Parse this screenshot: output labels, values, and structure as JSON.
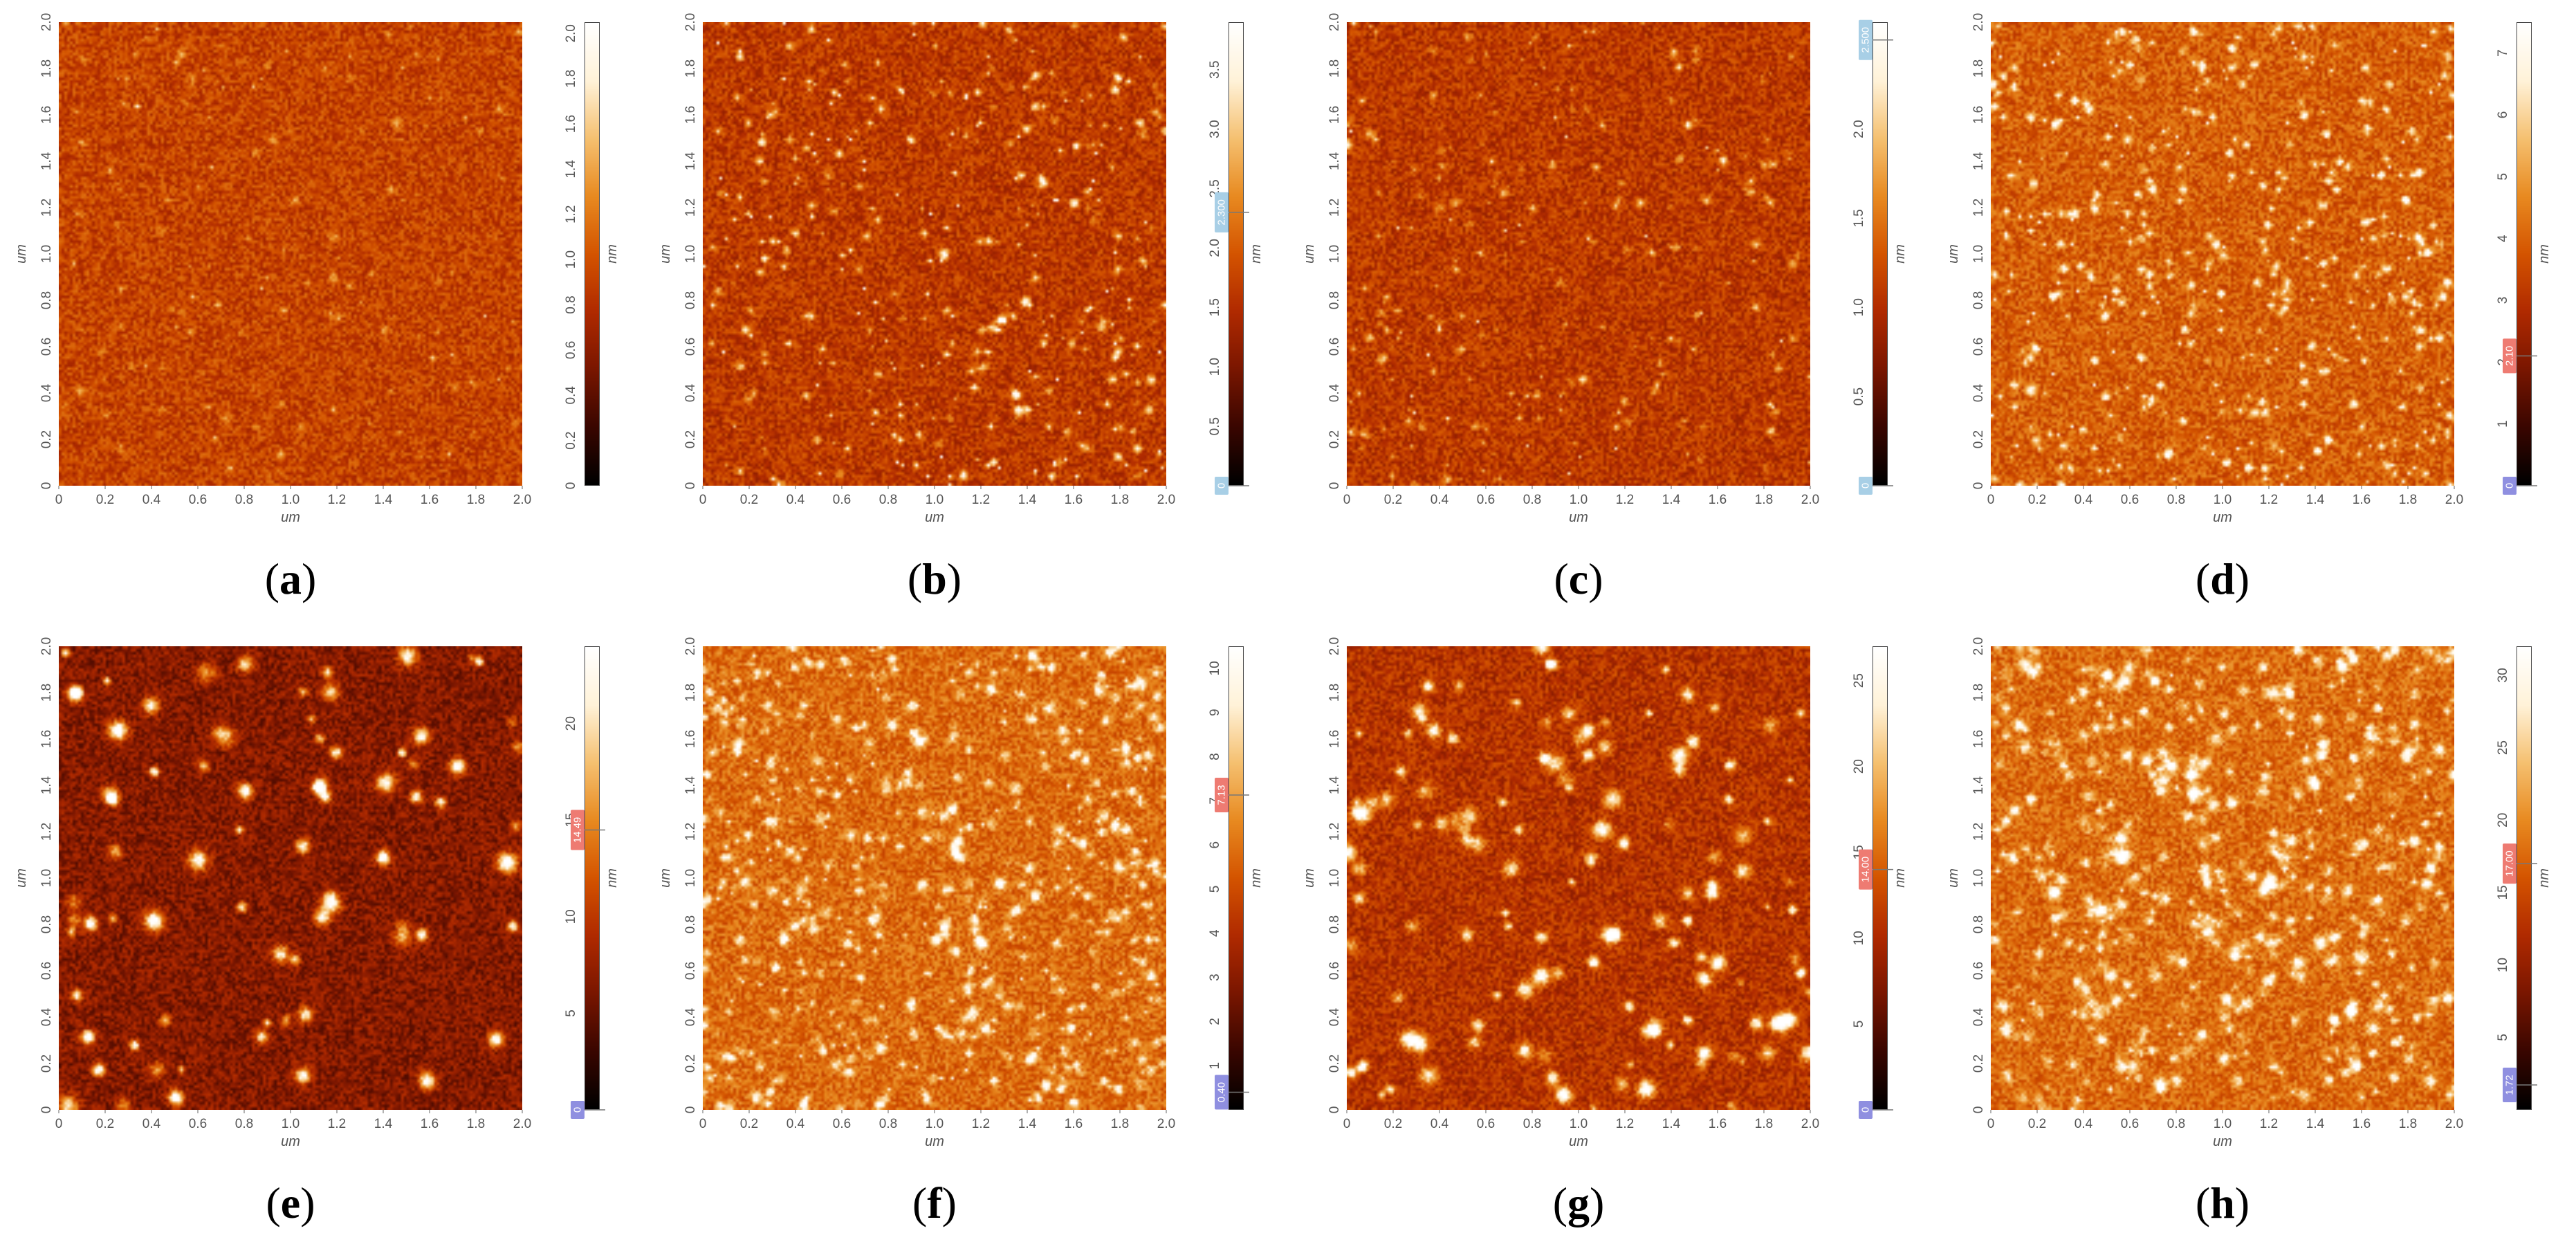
{
  "colors": {
    "colormap": [
      "#000000",
      "#3a0600",
      "#7a1600",
      "#b02a00",
      "#d45400",
      "#e88a20",
      "#f5c070",
      "#fff2d8",
      "#ffffff"
    ],
    "marker_blue": "#a8cfe6",
    "marker_red": "#ee7b72",
    "marker_purple": "#8f8fe0"
  },
  "panels": [
    {
      "id": "a",
      "caption_open": "(",
      "caption_letter": "a",
      "caption_close": ")",
      "x_axis_label": "um",
      "y_axis_label": "um",
      "colorbar_unit": "nm",
      "x_ticks": [
        "0",
        "0.2",
        "0.4",
        "0.6",
        "0.8",
        "1.0",
        "1.2",
        "1.4",
        "1.6",
        "1.8",
        "2.0"
      ],
      "y_ticks": [
        "0",
        "0.2",
        "0.4",
        "0.6",
        "0.8",
        "1.0",
        "1.2",
        "1.4",
        "1.6",
        "1.8",
        "2.0"
      ],
      "colorbar_ticks": [
        "0",
        "0.2",
        "0.4",
        "0.6",
        "0.8",
        "1.0",
        "1.2",
        "1.4",
        "1.6",
        "1.8",
        "2.0"
      ],
      "colorbar_max": 2.05,
      "texture": {
        "base": 0.45,
        "spot_density": 0.05,
        "spot_strength": 0.25,
        "spot_radius": 3
      },
      "markers": []
    },
    {
      "id": "b",
      "caption_open": "(",
      "caption_letter": "b",
      "caption_close": ")",
      "x_axis_label": "um",
      "y_axis_label": "um",
      "colorbar_unit": "nm",
      "x_ticks": [
        "0",
        "0.2",
        "0.4",
        "0.6",
        "0.8",
        "1.0",
        "1.2",
        "1.4",
        "1.6",
        "1.8",
        "2.0"
      ],
      "y_ticks": [
        "0",
        "0.2",
        "0.4",
        "0.6",
        "0.8",
        "1.0",
        "1.2",
        "1.4",
        "1.6",
        "1.8",
        "2.0"
      ],
      "colorbar_ticks": [
        "0.5",
        "1.0",
        "1.5",
        "2.0",
        "2.5",
        "3.0",
        "3.5"
      ],
      "colorbar_max": 3.9,
      "texture": {
        "base": 0.42,
        "spot_density": 0.12,
        "spot_strength": 0.5,
        "spot_radius": 3
      },
      "markers": [
        {
          "value": 2.3,
          "label": "2.300",
          "color": "blue"
        },
        {
          "value": 0,
          "label": "0",
          "color": "blue"
        }
      ]
    },
    {
      "id": "c",
      "caption_open": "(",
      "caption_letter": "c",
      "caption_close": ")",
      "x_axis_label": "um",
      "y_axis_label": "um",
      "colorbar_unit": "nm",
      "x_ticks": [
        "0",
        "0.2",
        "0.4",
        "0.6",
        "0.8",
        "1.0",
        "1.2",
        "1.4",
        "1.6",
        "1.8",
        "2.0"
      ],
      "y_ticks": [
        "0",
        "0.2",
        "0.4",
        "0.6",
        "0.8",
        "1.0",
        "1.2",
        "1.4",
        "1.6",
        "1.8",
        "2.0"
      ],
      "colorbar_ticks": [
        "0.5",
        "1.0",
        "1.5",
        "2.0"
      ],
      "colorbar_max": 2.6,
      "texture": {
        "base": 0.42,
        "spot_density": 0.08,
        "spot_strength": 0.35,
        "spot_radius": 3
      },
      "markers": [
        {
          "value": 2.5,
          "label": "2.500",
          "color": "blue"
        },
        {
          "value": 0,
          "label": "0",
          "color": "blue"
        }
      ]
    },
    {
      "id": "d",
      "caption_open": "(",
      "caption_letter": "d",
      "caption_close": ")",
      "x_axis_label": "um",
      "y_axis_label": "um",
      "colorbar_unit": "nm",
      "x_ticks": [
        "0",
        "0.2",
        "0.4",
        "0.6",
        "0.8",
        "1.0",
        "1.2",
        "1.4",
        "1.6",
        "1.8",
        "2.0"
      ],
      "y_ticks": [
        "0",
        "0.2",
        "0.4",
        "0.6",
        "0.8",
        "1.0",
        "1.2",
        "1.4",
        "1.6",
        "1.8",
        "2.0"
      ],
      "colorbar_ticks": [
        "1",
        "2",
        "3",
        "4",
        "5",
        "6",
        "7"
      ],
      "colorbar_max": 7.5,
      "texture": {
        "base": 0.52,
        "spot_density": 0.25,
        "spot_strength": 0.55,
        "spot_radius": 4
      },
      "markers": [
        {
          "value": 2.1,
          "label": "2.10",
          "color": "red"
        },
        {
          "value": 0,
          "label": "0",
          "color": "purple"
        }
      ]
    },
    {
      "id": "e",
      "caption_open": "(",
      "caption_letter": "e",
      "caption_close": ")",
      "x_axis_label": "um",
      "y_axis_label": "um",
      "colorbar_unit": "nm",
      "x_ticks": [
        "0",
        "0.2",
        "0.4",
        "0.6",
        "0.8",
        "1.0",
        "1.2",
        "1.4",
        "1.6",
        "1.8",
        "2.0"
      ],
      "y_ticks": [
        "0",
        "0.2",
        "0.4",
        "0.6",
        "0.8",
        "1.0",
        "1.2",
        "1.4",
        "1.6",
        "1.8",
        "2.0"
      ],
      "colorbar_ticks": [
        "5",
        "10",
        "15",
        "20"
      ],
      "colorbar_max": 24,
      "texture": {
        "base": 0.28,
        "spot_density": 0.22,
        "spot_strength": 0.75,
        "spot_radius": 9
      },
      "markers": [
        {
          "value": 14.49,
          "label": "14.49",
          "color": "red"
        },
        {
          "value": 0,
          "label": "0",
          "color": "purple"
        }
      ]
    },
    {
      "id": "f",
      "caption_open": "(",
      "caption_letter": "f",
      "caption_close": ")",
      "x_axis_label": "um",
      "y_axis_label": "um",
      "colorbar_unit": "nm",
      "x_ticks": [
        "0",
        "0.2",
        "0.4",
        "0.6",
        "0.8",
        "1.0",
        "1.2",
        "1.4",
        "1.6",
        "1.8",
        "2.0"
      ],
      "y_ticks": [
        "0",
        "0.2",
        "0.4",
        "0.6",
        "0.8",
        "1.0",
        "1.2",
        "1.4",
        "1.6",
        "1.8",
        "2.0"
      ],
      "colorbar_ticks": [
        "1",
        "2",
        "3",
        "4",
        "5",
        "6",
        "7",
        "8",
        "9",
        "10"
      ],
      "colorbar_max": 10.5,
      "texture": {
        "base": 0.55,
        "spot_density": 0.5,
        "spot_strength": 0.45,
        "spot_radius": 5
      },
      "markers": [
        {
          "value": 7.13,
          "label": "7.13",
          "color": "red"
        },
        {
          "value": 0.4,
          "label": "0.40",
          "color": "purple"
        }
      ]
    },
    {
      "id": "g",
      "caption_open": "(",
      "caption_letter": "g",
      "caption_close": ")",
      "x_axis_label": "um",
      "y_axis_label": "um",
      "colorbar_unit": "nm",
      "x_ticks": [
        "0",
        "0.2",
        "0.4",
        "0.6",
        "0.8",
        "1.0",
        "1.2",
        "1.4",
        "1.6",
        "1.8",
        "2.0"
      ],
      "y_ticks": [
        "0",
        "0.2",
        "0.4",
        "0.6",
        "0.8",
        "1.0",
        "1.2",
        "1.4",
        "1.6",
        "1.8",
        "2.0"
      ],
      "colorbar_ticks": [
        "5",
        "10",
        "15",
        "20",
        "25"
      ],
      "colorbar_max": 27,
      "texture": {
        "base": 0.4,
        "spot_density": 0.3,
        "spot_strength": 0.65,
        "spot_radius": 8
      },
      "markers": [
        {
          "value": 14.0,
          "label": "14.00",
          "color": "red"
        },
        {
          "value": 0,
          "label": "0",
          "color": "purple"
        }
      ]
    },
    {
      "id": "h",
      "caption_open": "(",
      "caption_letter": "h",
      "caption_close": ")",
      "x_axis_label": "um",
      "y_axis_label": "um",
      "colorbar_unit": "nm",
      "x_ticks": [
        "0",
        "0.2",
        "0.4",
        "0.6",
        "0.8",
        "1.0",
        "1.2",
        "1.4",
        "1.6",
        "1.8",
        "2.0"
      ],
      "y_ticks": [
        "0",
        "0.2",
        "0.4",
        "0.6",
        "0.8",
        "1.0",
        "1.2",
        "1.4",
        "1.6",
        "1.8",
        "2.0"
      ],
      "colorbar_ticks": [
        "5",
        "10",
        "15",
        "20",
        "25",
        "30"
      ],
      "colorbar_max": 32,
      "texture": {
        "base": 0.55,
        "spot_density": 0.6,
        "spot_strength": 0.45,
        "spot_radius": 6
      },
      "markers": [
        {
          "value": 17.0,
          "label": "17.00",
          "color": "red"
        },
        {
          "value": 1.72,
          "label": "1.72",
          "color": "purple"
        }
      ]
    }
  ]
}
